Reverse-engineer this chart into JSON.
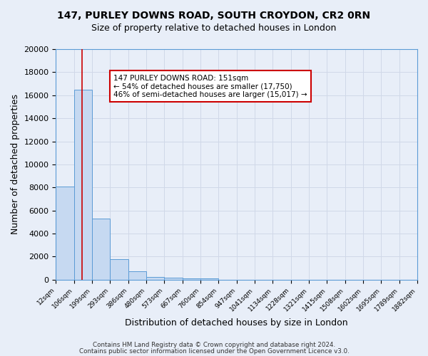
{
  "title": "147, PURLEY DOWNS ROAD, SOUTH CROYDON, CR2 0RN",
  "subtitle": "Size of property relative to detached houses in London",
  "xlabel": "Distribution of detached houses by size in London",
  "ylabel": "Number of detached properties",
  "bar_values": [
    8100,
    16500,
    5300,
    1800,
    750,
    250,
    150,
    100,
    80,
    0,
    0,
    0,
    0,
    0,
    0,
    0,
    0,
    0,
    0,
    0
  ],
  "bar_labels": [
    "12sqm",
    "106sqm",
    "199sqm",
    "293sqm",
    "386sqm",
    "480sqm",
    "573sqm",
    "667sqm",
    "760sqm",
    "854sqm",
    "947sqm",
    "1041sqm",
    "1134sqm",
    "1228sqm",
    "1321sqm",
    "1415sqm",
    "1508sqm",
    "1602sqm",
    "1695sqm",
    "1789sqm",
    "1882sqm"
  ],
  "bar_color": "#c6d9f1",
  "bar_edge_color": "#5b9bd5",
  "red_line_x": 1.45,
  "ylim": [
    0,
    20000
  ],
  "yticks": [
    0,
    2000,
    4000,
    6000,
    8000,
    10000,
    12000,
    14000,
    16000,
    18000,
    20000
  ],
  "annotation_title": "147 PURLEY DOWNS ROAD: 151sqm",
  "annotation_line1": "← 54% of detached houses are smaller (17,750)",
  "annotation_line2": "46% of semi-detached houses are larger (15,017) →",
  "annotation_box_color": "#ffffff",
  "annotation_box_edge": "#cc0000",
  "footer1": "Contains HM Land Registry data © Crown copyright and database right 2024.",
  "footer2": "Contains public sector information licensed under the Open Government Licence v3.0.",
  "grid_color": "#d0d8e8",
  "bg_color": "#e8eef8"
}
